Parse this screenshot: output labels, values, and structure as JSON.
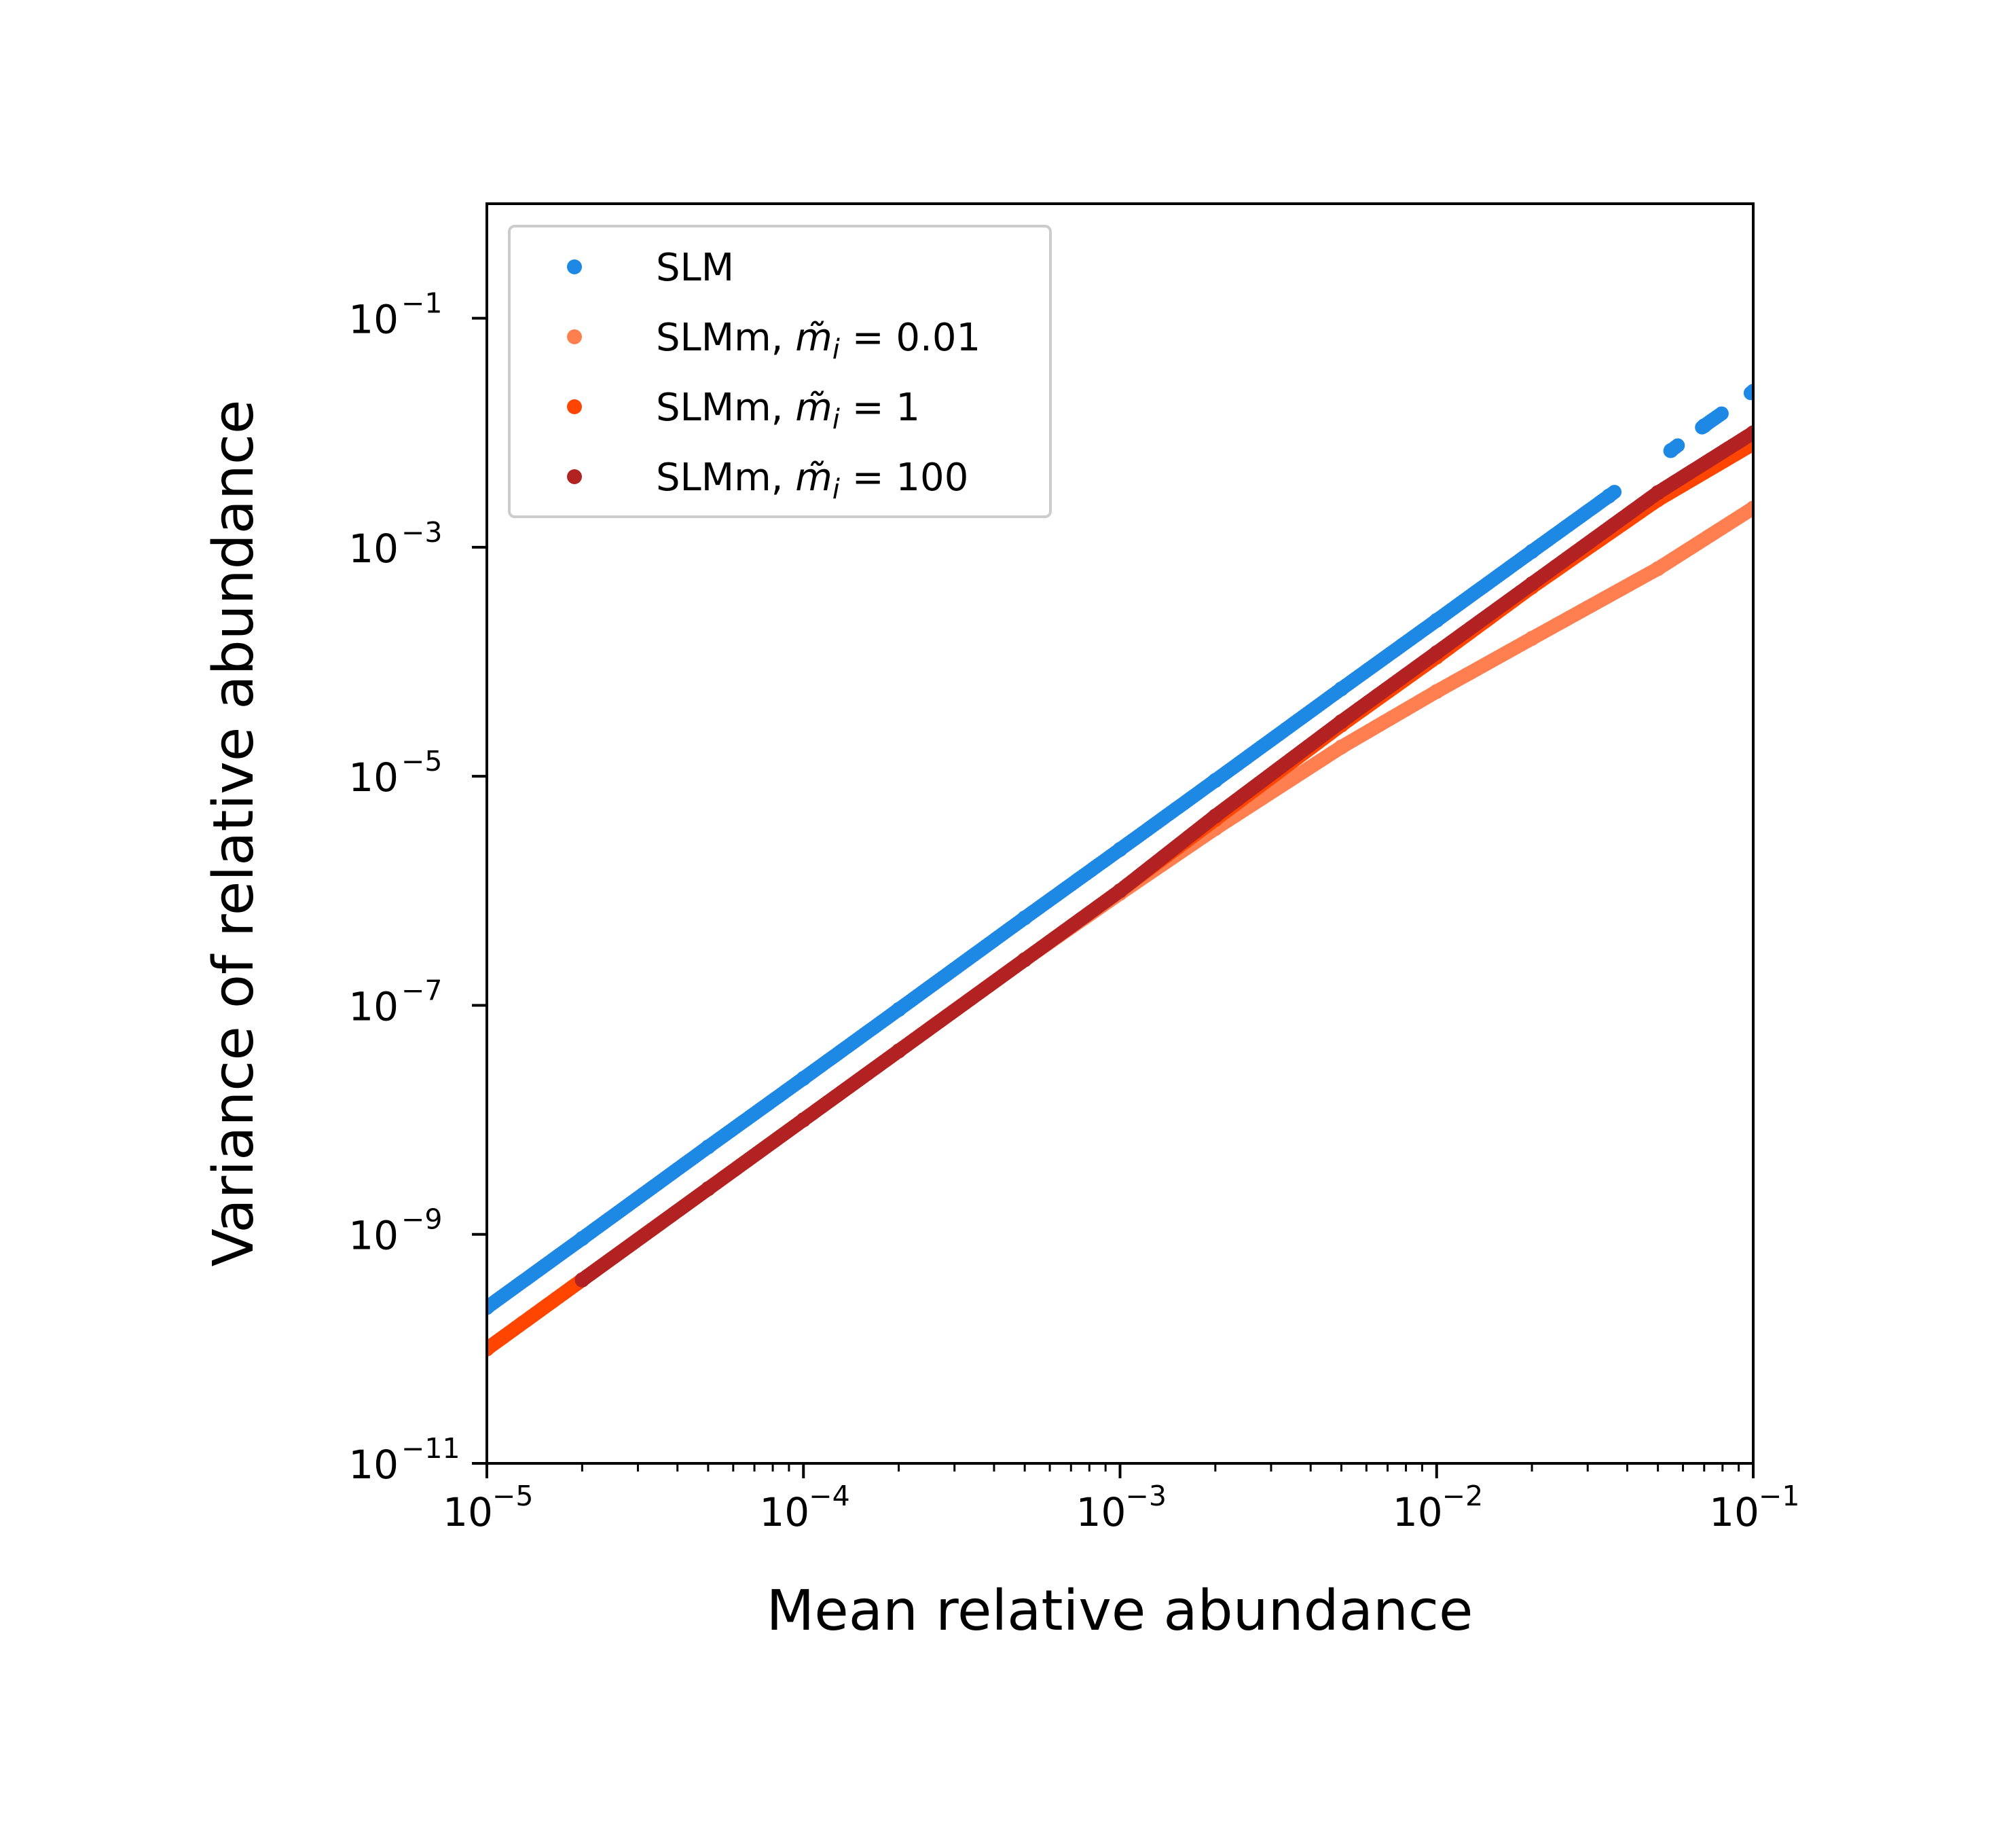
{
  "chart_data": {
    "type": "scatter",
    "xlabel": "Mean relative abundance",
    "ylabel": "Variance of relative abundance",
    "xscale": "log",
    "yscale": "log",
    "xlim": [
      1e-05,
      0.1
    ],
    "ylim": [
      1e-11,
      1
    ],
    "x_ticks": [
      {
        "base": "10",
        "exp": "−5"
      },
      {
        "base": "10",
        "exp": "−4"
      },
      {
        "base": "10",
        "exp": "−3"
      },
      {
        "base": "10",
        "exp": "−2"
      },
      {
        "base": "10",
        "exp": "−1"
      }
    ],
    "y_ticks": [
      {
        "base": "10",
        "exp": "−11"
      },
      {
        "base": "10",
        "exp": "−9"
      },
      {
        "base": "10",
        "exp": "−7"
      },
      {
        "base": "10",
        "exp": "−5"
      },
      {
        "base": "10",
        "exp": "−3"
      },
      {
        "base": "10",
        "exp": "−1"
      }
    ],
    "grid": false,
    "legend_position": "top-left",
    "series": [
      {
        "name": "SLM",
        "legend": {
          "prefix": "SLM",
          "symbol": "",
          "value": ""
        },
        "color": "#1e88e5",
        "points": [
          [
            1e-05,
            2.3e-10
          ],
          [
            2e-05,
            9.2e-10
          ],
          [
            5e-05,
            5.8e-09
          ],
          [
            0.0001,
            2.3e-08
          ],
          [
            0.0002,
            9.2e-08
          ],
          [
            0.0005,
            5.8e-07
          ],
          [
            0.001,
            2.3e-06
          ],
          [
            0.002,
            9.2e-06
          ],
          [
            0.005,
            5.8e-05
          ],
          [
            0.01,
            0.00023
          ],
          [
            0.02,
            0.00092
          ],
          [
            0.035,
            0.0028
          ],
          [
            0.055,
            0.007
          ],
          [
            0.07,
            0.0115
          ],
          [
            0.1,
            0.023
          ]
        ]
      },
      {
        "name": "SLMm, m̃_i = 0.01",
        "legend": {
          "prefix": "SLMm, ",
          "symbol": "m̃",
          "sub": "i",
          "value": " = 0.01"
        },
        "color": "#ff7f50",
        "points": [
          [
            1e-05,
            1e-10
          ],
          [
            2e-05,
            4e-10
          ],
          [
            5e-05,
            2.5e-09
          ],
          [
            0.0001,
            1e-08
          ],
          [
            0.0002,
            4e-08
          ],
          [
            0.0005,
            2.5e-07
          ],
          [
            0.001,
            9.5e-07
          ],
          [
            0.002,
            3.5e-06
          ],
          [
            0.005,
            1.8e-05
          ],
          [
            0.01,
            5.5e-05
          ],
          [
            0.02,
            0.00016
          ],
          [
            0.05,
            0.00065
          ],
          [
            0.1,
            0.0022
          ]
        ]
      },
      {
        "name": "SLMm, m̃_i = 1",
        "legend": {
          "prefix": "SLMm, ",
          "symbol": "m̃",
          "sub": "i",
          "value": " = 1"
        },
        "color": "#ff4500",
        "points": [
          [
            1e-05,
            1e-10
          ],
          [
            2e-05,
            4e-10
          ],
          [
            5e-05,
            2.5e-09
          ],
          [
            0.0001,
            1e-08
          ],
          [
            0.0002,
            4e-08
          ],
          [
            0.0005,
            2.5e-07
          ],
          [
            0.001,
            1e-06
          ],
          [
            0.002,
            4.2e-06
          ],
          [
            0.005,
            2.8e-05
          ],
          [
            0.01,
            0.00011
          ],
          [
            0.02,
            0.00045
          ],
          [
            0.05,
            0.0026
          ],
          [
            0.1,
            0.008
          ]
        ]
      },
      {
        "name": "SLMm, m̃_i = 100",
        "legend": {
          "prefix": "SLMm, ",
          "symbol": "m̃",
          "sub": "i",
          "value": " = 100"
        },
        "color": "#b22222",
        "points": [
          [
            2e-05,
            4e-10
          ],
          [
            5e-05,
            2.5e-09
          ],
          [
            0.0001,
            1e-08
          ],
          [
            0.0002,
            4e-08
          ],
          [
            0.0005,
            2.5e-07
          ],
          [
            0.001,
            1e-06
          ],
          [
            0.002,
            4.5e-06
          ],
          [
            0.005,
            3e-05
          ],
          [
            0.01,
            0.00012
          ],
          [
            0.02,
            0.00048
          ],
          [
            0.05,
            0.003
          ],
          [
            0.1,
            0.01
          ]
        ]
      }
    ]
  }
}
